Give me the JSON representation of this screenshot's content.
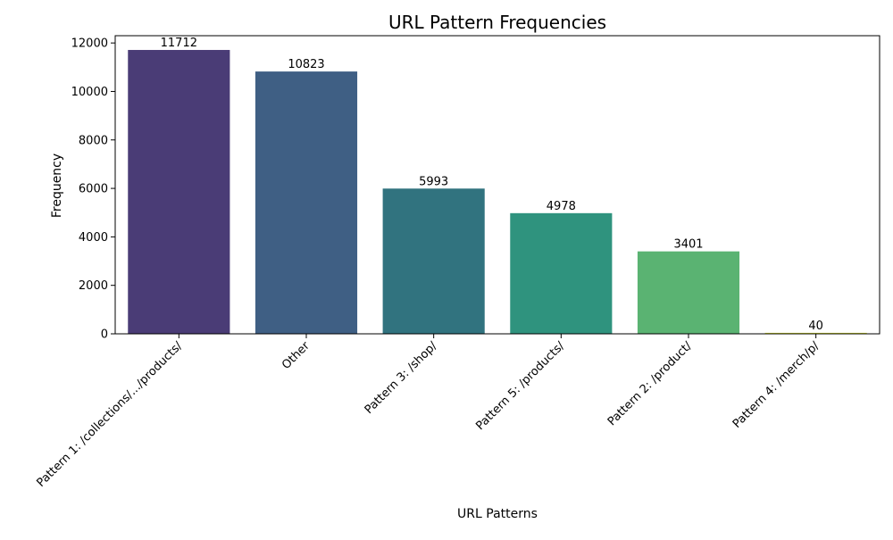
{
  "chart_data": {
    "type": "bar",
    "title": "URL Pattern Frequencies",
    "xlabel": "URL Patterns",
    "ylabel": "Frequency",
    "categories": [
      "Pattern 1: /collections/.../products/",
      "Other",
      "Pattern 3: /shop/",
      "Pattern 5: /products/",
      "Pattern 2: /product/",
      "Pattern 4: /merch/p/"
    ],
    "values": [
      11712,
      10823,
      5993,
      4978,
      3401,
      40
    ],
    "data_labels": [
      "11712",
      "10823",
      "5993",
      "4978",
      "3401",
      "40"
    ],
    "colors": [
      "#4a3c76",
      "#3f5f84",
      "#31737f",
      "#2f937e",
      "#5ab372",
      "#d8e12f"
    ],
    "ylim": [
      0,
      12300
    ],
    "yticks": [
      0,
      2000,
      4000,
      6000,
      8000,
      10000,
      12000
    ],
    "ytick_labels": [
      "0",
      "2000",
      "4000",
      "6000",
      "8000",
      "10000",
      "12000"
    ],
    "grid": false,
    "legend": "none"
  }
}
